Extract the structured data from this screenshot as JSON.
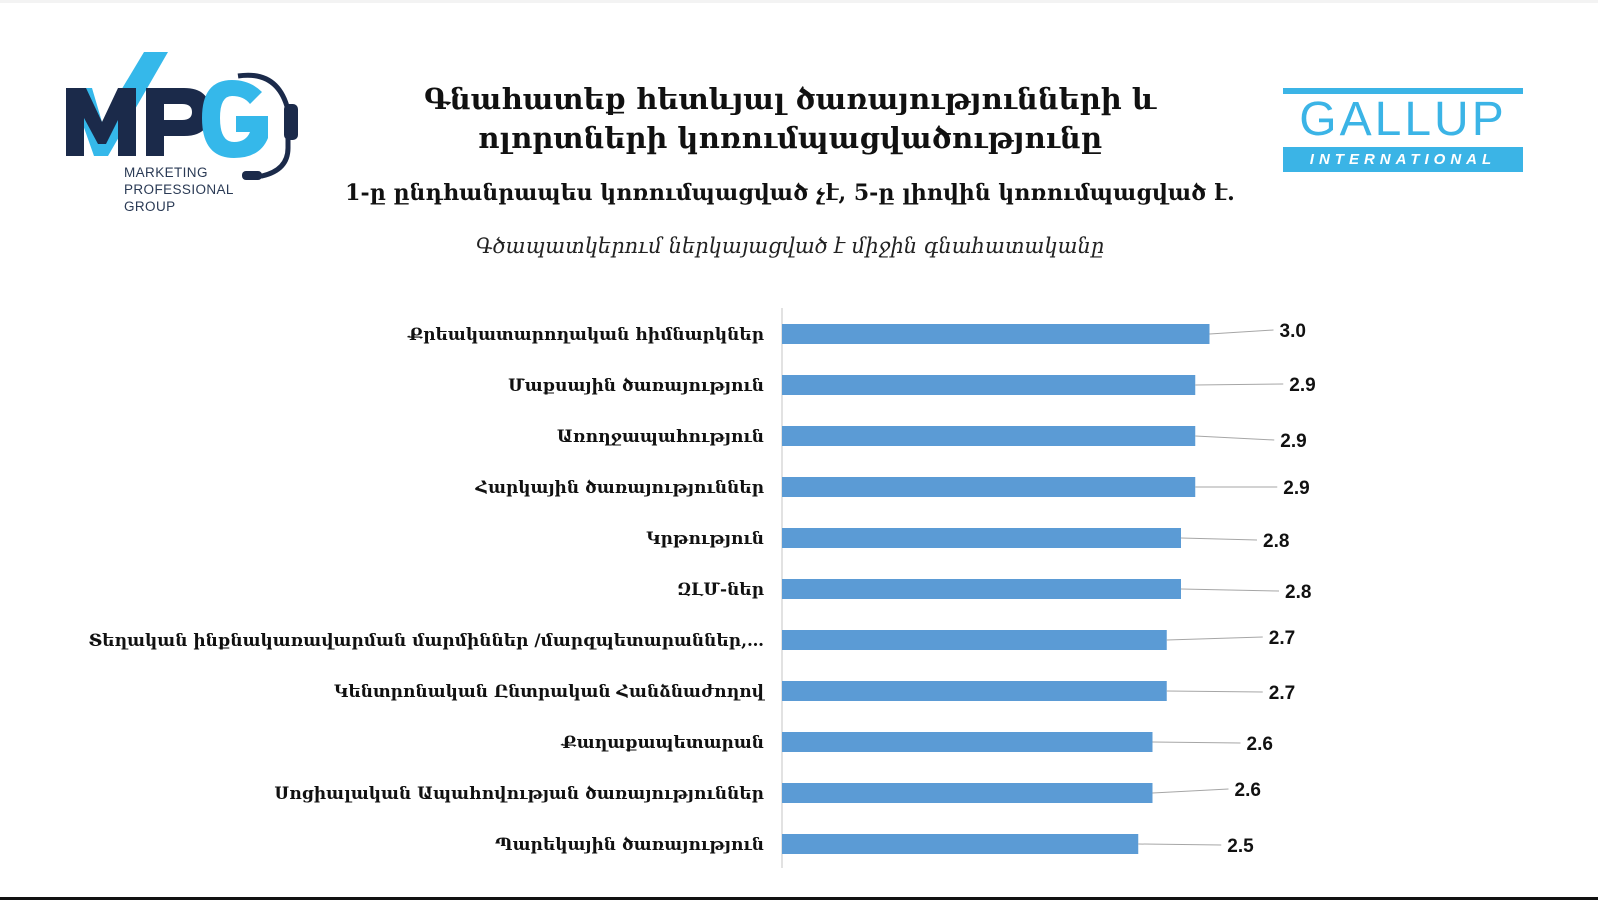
{
  "header": {
    "title_line1": "Գնահատեք հետևյալ ծառայությունների և",
    "title_line2": "ոլորտների կոռումպացվածությունը",
    "subtitle": "1-ը ընդհանրապես կոռումպացված չէ, 5-ը լիովին կոռումպացված է.",
    "note": "Գծապատկերում ներկայացված է միջին գնահատականը"
  },
  "logos": {
    "mpg": {
      "letters": "MPG",
      "tagline": [
        "MARKETING",
        "PROFESSIONAL",
        "GROUP"
      ],
      "navy": "#1b2a4a",
      "blue": "#35b8ea"
    },
    "gallup": {
      "word": "GALLUP",
      "band": "INTERNATIONAL",
      "color": "#3bb4e6"
    }
  },
  "chart_data": {
    "type": "bar",
    "orientation": "horizontal",
    "bar_color": "#5b9bd5",
    "categories": [
      "Քրեակատարողական հիմնարկներ",
      "Մաքսային ծառայություն",
      "Առողջապահություն",
      "Հարկային ծառայություններ",
      "Կրթություն",
      "ԶԼՄ-ներ",
      "Տեղական ինքնակառավարման մարմիններ /մարզպետարաններ,…",
      "Կենտրոնական Ընտրական Հանձնաժողով",
      "Քաղաքապետարան",
      "Սոցիալական Ապահովության ծառայություններ",
      "Պարեկային ծառայություն"
    ],
    "values": [
      3.0,
      2.9,
      2.9,
      2.9,
      2.8,
      2.8,
      2.7,
      2.7,
      2.6,
      2.6,
      2.5
    ],
    "value_labels": [
      "3.0",
      "2.9",
      "2.9",
      "2.9",
      "2.8",
      "2.8",
      "2.7",
      "2.7",
      "2.6",
      "2.6",
      "2.5"
    ],
    "xlim": [
      0,
      3.3
    ],
    "grid": false,
    "legend": "none",
    "data_labels": "outside-end with leader lines"
  }
}
